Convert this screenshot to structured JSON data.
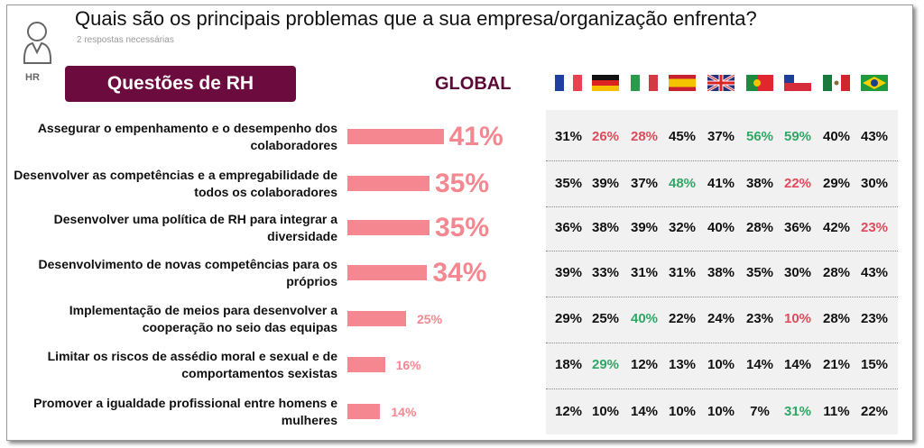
{
  "header": {
    "title": "Quais são os principais problemas que a sua empresa/organização enfrenta?",
    "subtitle": "2 respostas necessárias",
    "role": "HR",
    "section": "Questões de RH",
    "global_label": "GLOBAL"
  },
  "countries": [
    "France",
    "Germany",
    "Italy",
    "Spain",
    "United Kingdom",
    "Portugal",
    "Chile",
    "Mexico",
    "Brazil"
  ],
  "colors": {
    "bar": "#f4878f",
    "low": "#e04a5a",
    "high": "#2ea866",
    "normal": "#111111"
  },
  "chart_data": {
    "type": "bar",
    "title": "Quais são os principais problemas que a sua empresa/organização enfrenta?",
    "categories": [
      "Assegurar o empenhamento e o desempenho dos colaboradores",
      "Desenvolver as competências e a empregabilidade de todos os colaboradores",
      "Desenvolver uma política de RH para integrar a diversidade",
      "Desenvolvimento de novas competências para os próprios",
      "Implementação de meios para desenvolver a cooperação no seio das equipas",
      "Limitar os riscos de assédio moral e sexual e de comportamentos sexistas",
      "Promover a igualdade profissional entre homens e mulheres"
    ],
    "values": [
      41,
      35,
      35,
      34,
      25,
      16,
      14
    ],
    "labels": [
      "41%",
      "35%",
      "35%",
      "34%",
      "25%",
      "16%",
      "14%"
    ],
    "table": [
      [
        "31%",
        "26%",
        "28%",
        "45%",
        "37%",
        "56%",
        "59%",
        "40%",
        "43%"
      ],
      [
        "35%",
        "39%",
        "37%",
        "48%",
        "41%",
        "38%",
        "22%",
        "29%",
        "30%"
      ],
      [
        "36%",
        "38%",
        "39%",
        "32%",
        "40%",
        "28%",
        "36%",
        "42%",
        "23%"
      ],
      [
        "39%",
        "33%",
        "31%",
        "31%",
        "38%",
        "35%",
        "30%",
        "28%",
        "43%"
      ],
      [
        "29%",
        "25%",
        "40%",
        "22%",
        "24%",
        "23%",
        "10%",
        "28%",
        "23%"
      ],
      [
        "18%",
        "29%",
        "12%",
        "13%",
        "10%",
        "14%",
        "14%",
        "21%",
        "15%"
      ],
      [
        "12%",
        "10%",
        "14%",
        "10%",
        "10%",
        "7%",
        "31%",
        "11%",
        "22%"
      ]
    ],
    "highlight": [
      [
        "n",
        "low",
        "low",
        "n",
        "n",
        "high",
        "high",
        "n",
        "n"
      ],
      [
        "n",
        "n",
        "n",
        "high",
        "n",
        "n",
        "low",
        "n",
        "n"
      ],
      [
        "n",
        "n",
        "n",
        "n",
        "n",
        "n",
        "n",
        "n",
        "low"
      ],
      [
        "n",
        "n",
        "n",
        "n",
        "n",
        "n",
        "n",
        "n",
        "n"
      ],
      [
        "n",
        "n",
        "high",
        "n",
        "n",
        "n",
        "low",
        "n",
        "n"
      ],
      [
        "n",
        "high",
        "n",
        "n",
        "n",
        "n",
        "n",
        "n",
        "n"
      ],
      [
        "n",
        "n",
        "n",
        "n",
        "n",
        "n",
        "high",
        "n",
        "n"
      ]
    ]
  }
}
